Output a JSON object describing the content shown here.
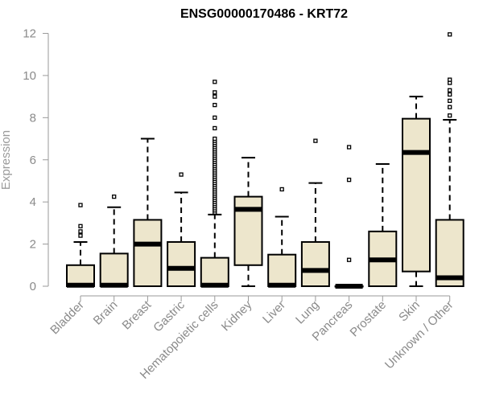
{
  "chart_data": {
    "type": "box",
    "title": "ENSG00000170486 - KRT72",
    "xlabel": "",
    "ylabel": "Expression",
    "ylim": [
      0,
      12
    ],
    "yticks": [
      0,
      2,
      4,
      6,
      8,
      10,
      12
    ],
    "box_fill": "#ede6cc",
    "categories": [
      "Bladder",
      "Brain",
      "Breast",
      "Gastric",
      "Hematopoietic cells",
      "Kidney",
      "Liver",
      "Lung",
      "Pancreas",
      "Prostate",
      "Skin",
      "Unknown / Other"
    ],
    "boxes": [
      {
        "category": "Bladder",
        "q1": 0.0,
        "median": 0.05,
        "q3": 1.0,
        "whisker_low": 0.0,
        "whisker_high": 2.1,
        "outliers": [
          2.4,
          2.6,
          2.85,
          3.85
        ]
      },
      {
        "category": "Brain",
        "q1": 0.0,
        "median": 0.05,
        "q3": 1.55,
        "whisker_low": 0.0,
        "whisker_high": 3.75,
        "outliers": [
          4.25
        ]
      },
      {
        "category": "Breast",
        "q1": 0.0,
        "median": 2.0,
        "q3": 3.15,
        "whisker_low": 0.0,
        "whisker_high": 7.0,
        "outliers": []
      },
      {
        "category": "Gastric",
        "q1": 0.0,
        "median": 0.85,
        "q3": 2.1,
        "whisker_low": 0.0,
        "whisker_high": 4.45,
        "outliers": [
          5.3
        ]
      },
      {
        "category": "Hematopoietic cells",
        "q1": 0.0,
        "median": 0.05,
        "q3": 1.35,
        "whisker_low": 0.0,
        "whisker_high": 3.4,
        "outliers": [
          3.5,
          3.6,
          3.7,
          3.8,
          3.9,
          4.0,
          4.1,
          4.2,
          4.3,
          4.4,
          4.5,
          4.6,
          4.7,
          4.8,
          4.9,
          5.0,
          5.1,
          5.2,
          5.3,
          5.4,
          5.5,
          5.6,
          5.7,
          5.8,
          5.9,
          6.0,
          6.1,
          6.2,
          6.3,
          6.4,
          6.5,
          6.6,
          6.7,
          6.8,
          6.9,
          7.0,
          7.5,
          8.0,
          8.6,
          9.0,
          9.2,
          9.7
        ]
      },
      {
        "category": "Kidney",
        "q1": 1.0,
        "median": 3.65,
        "q3": 4.25,
        "whisker_low": 0.0,
        "whisker_high": 6.1,
        "outliers": []
      },
      {
        "category": "Liver",
        "q1": 0.0,
        "median": 0.05,
        "q3": 1.5,
        "whisker_low": 0.0,
        "whisker_high": 3.3,
        "outliers": [
          4.6
        ]
      },
      {
        "category": "Lung",
        "q1": 0.0,
        "median": 0.75,
        "q3": 2.1,
        "whisker_low": 0.0,
        "whisker_high": 4.9,
        "outliers": [
          6.9
        ]
      },
      {
        "category": "Pancreas",
        "q1": 0.0,
        "median": 0.0,
        "q3": 0.0,
        "whisker_low": 0.0,
        "whisker_high": 0.0,
        "outliers": [
          1.25,
          5.05,
          6.6
        ]
      },
      {
        "category": "Prostate",
        "q1": 0.0,
        "median": 1.25,
        "q3": 2.6,
        "whisker_low": 0.0,
        "whisker_high": 5.8,
        "outliers": []
      },
      {
        "category": "Skin",
        "q1": 0.7,
        "median": 6.35,
        "q3": 7.95,
        "whisker_low": 0.0,
        "whisker_high": 9.0,
        "outliers": []
      },
      {
        "category": "Unknown / Other",
        "q1": 0.0,
        "median": 0.4,
        "q3": 3.15,
        "whisker_low": 0.0,
        "whisker_high": 7.9,
        "outliers": [
          8.1,
          8.5,
          8.8,
          9.1,
          9.3,
          9.65,
          9.8,
          11.95
        ]
      }
    ]
  }
}
